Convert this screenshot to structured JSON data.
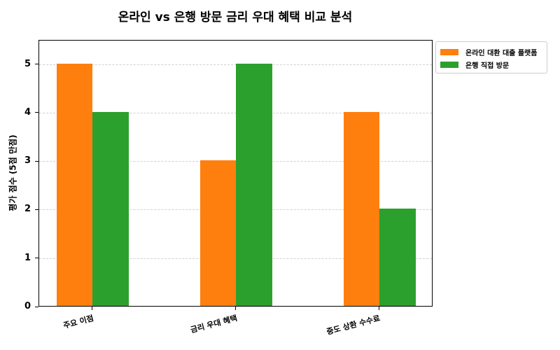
{
  "chart_data": {
    "type": "bar",
    "title": "온라인 vs 은행 방문 금리 우대 혜택 비교 분석",
    "xlabel": "",
    "ylabel": "평가 점수 (5점 만점)",
    "categories": [
      "주요 이점",
      "금리 우대 혜택",
      "중도 상환 수수료"
    ],
    "series": [
      {
        "name": "온라인 대환 대출 플랫폼",
        "color": "#ff7f0e",
        "values": [
          5,
          3,
          4
        ]
      },
      {
        "name": "은행 직접 방문",
        "color": "#2ca02c",
        "values": [
          4,
          5,
          2
        ]
      }
    ],
    "ylim": [
      0,
      5.5
    ],
    "yticks": [
      0,
      1,
      2,
      3,
      4,
      5
    ],
    "grid": {
      "y": true,
      "style": "dashed"
    },
    "legend_position": "outside upper right"
  }
}
